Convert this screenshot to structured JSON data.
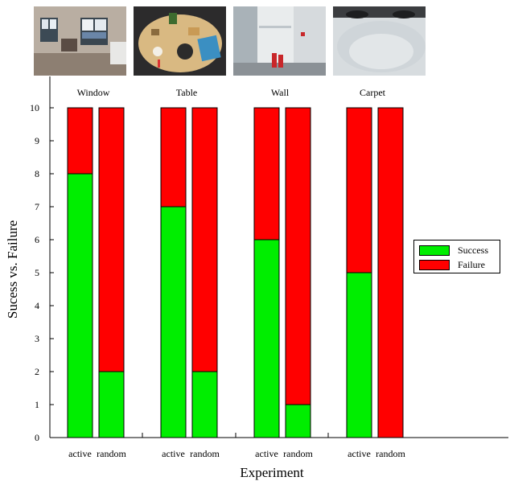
{
  "chart_data": {
    "type": "bar",
    "stacked": true,
    "groups": [
      "Window",
      "Table",
      "Wall",
      "Carpet"
    ],
    "categories": [
      "active",
      "random",
      "active",
      "random",
      "active",
      "random",
      "active",
      "random"
    ],
    "series": [
      {
        "name": "Success",
        "color": "#00ee00",
        "values": [
          8,
          2,
          7,
          2,
          6,
          1,
          5,
          0
        ]
      },
      {
        "name": "Failure",
        "color": "#ff0000",
        "values": [
          2,
          8,
          3,
          8,
          4,
          9,
          5,
          10
        ]
      }
    ],
    "xlabel": "Experiment",
    "ylabel": "Sucess vs. Failure",
    "ylim": [
      0,
      10
    ],
    "yticks": [
      0,
      1,
      2,
      3,
      4,
      5,
      6,
      7,
      8,
      9,
      10
    ],
    "grid": false,
    "legend": "right"
  },
  "thumbnails": [
    {
      "icon": "window-photo"
    },
    {
      "icon": "table-photo"
    },
    {
      "icon": "wall-photo"
    },
    {
      "icon": "carpet-photo"
    }
  ]
}
